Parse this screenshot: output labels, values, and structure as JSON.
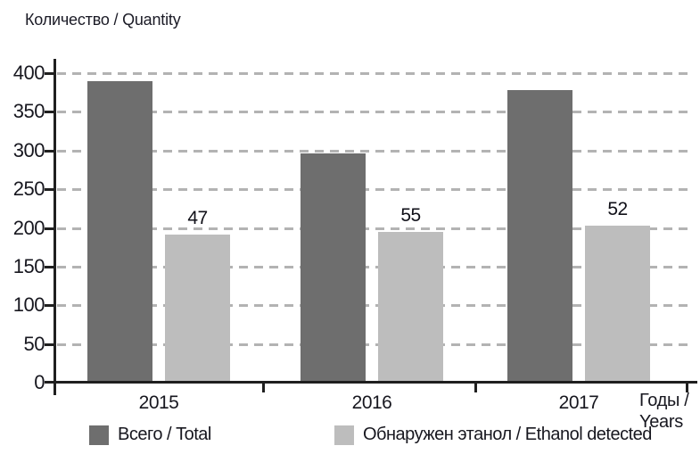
{
  "figure": {
    "background": "#ffffff",
    "text_color": "#17171f",
    "axis_color": "#1f1f1f",
    "gridline_color": "#b3b3b3",
    "x_axis_title_line1": "Годы /",
    "x_axis_title_line2": "Years"
  },
  "chart_data": {
    "type": "bar",
    "title": "Количество / Quantity",
    "xlabel": "Годы / Years",
    "ylabel": "Количество / Quantity",
    "categories": [
      "2015",
      "2016",
      "2017"
    ],
    "series": [
      {
        "name": "Всего / Total",
        "color": "#6e6e6e",
        "values": [
          390,
          296,
          378
        ],
        "data_labels": null
      },
      {
        "name": "Обнаружен этанол / Ethanol detected",
        "color": "#bdbdbd",
        "values": [
          191,
          195,
          203
        ],
        "data_labels": [
          "47",
          "55",
          "52"
        ]
      }
    ],
    "ylim": [
      0,
      400
    ],
    "yticks": [
      0,
      50,
      100,
      150,
      200,
      250,
      300,
      350,
      400
    ],
    "grid": "horizontal-dashed",
    "legend_position": "bottom"
  }
}
